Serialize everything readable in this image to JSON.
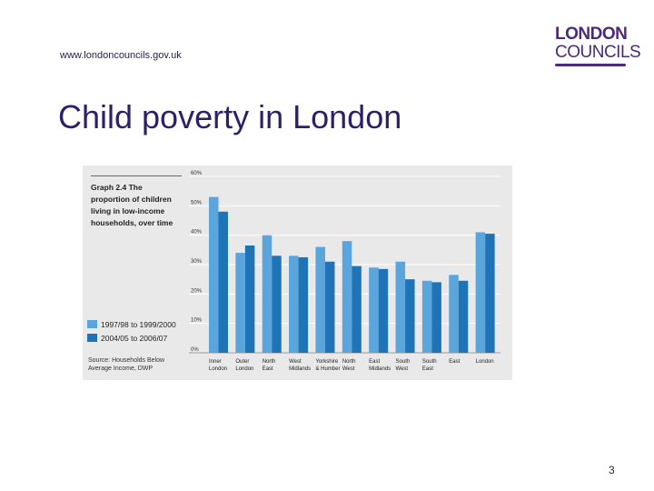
{
  "header": {
    "url": "www.londoncouncils.gov.uk",
    "logo_line1": "LONDON",
    "logo_line2": "COUNCILS"
  },
  "slide": {
    "title": "Child poverty in London",
    "page_number": "3"
  },
  "chart_data": {
    "type": "bar",
    "title": "Graph 2.4 The proportion of children living in low-income households, over time",
    "source": "Source: Households Below Average Income, DWP",
    "categories": [
      [
        "Inner",
        "London"
      ],
      [
        "Outer",
        "London"
      ],
      [
        "North",
        "East"
      ],
      [
        "West",
        "Midlands"
      ],
      [
        "Yorkshire",
        "& Humber"
      ],
      [
        "North",
        "West"
      ],
      [
        "East",
        "Midlands"
      ],
      [
        "South",
        "West"
      ],
      [
        "South",
        "East"
      ],
      [
        "East",
        ""
      ],
      [
        "London",
        ""
      ]
    ],
    "series": [
      {
        "name": "1997/98 to 1999/2000",
        "color": "#5aa5dc",
        "values": [
          53,
          34,
          40,
          33,
          36,
          38,
          29,
          31,
          24.5,
          26.5,
          41
        ]
      },
      {
        "name": "2004/05 to 2006/07",
        "color": "#1f74b8",
        "values": [
          48,
          36.5,
          33,
          32.5,
          31,
          29.5,
          28.5,
          25,
          24,
          24.5,
          40.5
        ]
      }
    ],
    "ylim": [
      0,
      60
    ],
    "yticks": [
      "0%",
      "10%",
      "20%",
      "30%",
      "40%",
      "50%",
      "60%"
    ],
    "grid": true,
    "legend_position": "left"
  }
}
